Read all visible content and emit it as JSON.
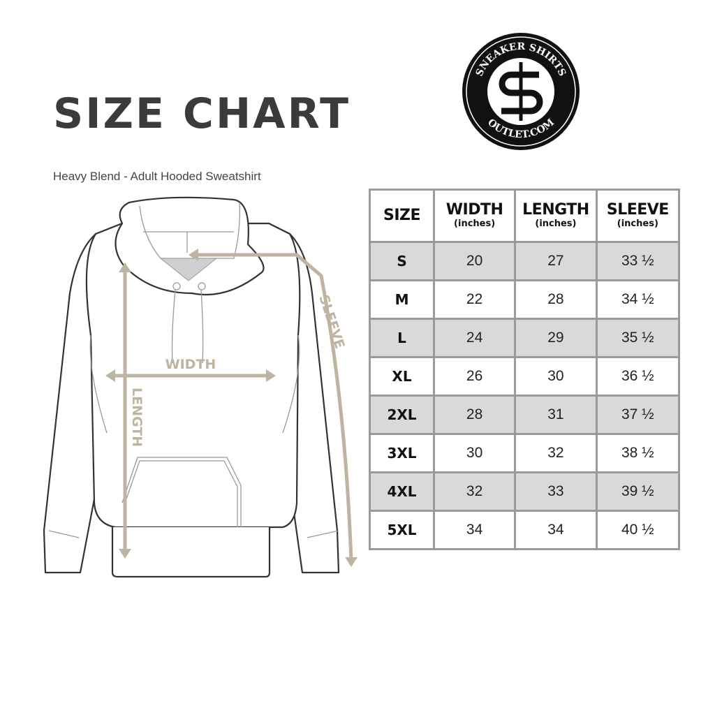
{
  "header": {
    "title": "SIZE CHART",
    "subtitle": "Heavy Blend - Adult Hooded Sweatshirt"
  },
  "logo": {
    "top_text": "SNEAKER SHIRTS",
    "bottom_text": "OUTLET.COM",
    "monogram": "SS"
  },
  "diagram": {
    "width_label": "WIDTH",
    "length_label": "LENGTH",
    "sleeve_label": "SLEEVE",
    "arrow_color": "#bfb3a2"
  },
  "table": {
    "headers": [
      {
        "label": "SIZE",
        "unit": ""
      },
      {
        "label": "WIDTH",
        "unit": "(inches)"
      },
      {
        "label": "LENGTH",
        "unit": "(inches)"
      },
      {
        "label": "SLEEVE",
        "unit": "(inches)"
      }
    ],
    "rows": [
      [
        "S",
        "20",
        "27",
        "33 ½"
      ],
      [
        "M",
        "22",
        "28",
        "34 ½"
      ],
      [
        "L",
        "24",
        "29",
        "35 ½"
      ],
      [
        "XL",
        "26",
        "30",
        "36 ½"
      ],
      [
        "2XL",
        "28",
        "31",
        "37 ½"
      ],
      [
        "3XL",
        "30",
        "32",
        "38 ½"
      ],
      [
        "4XL",
        "32",
        "33",
        "39 ½"
      ],
      [
        "5XL",
        "34",
        "34",
        "40 ½"
      ]
    ],
    "shade_color": "#d9d9d9",
    "border_color": "#9a9a9a"
  }
}
